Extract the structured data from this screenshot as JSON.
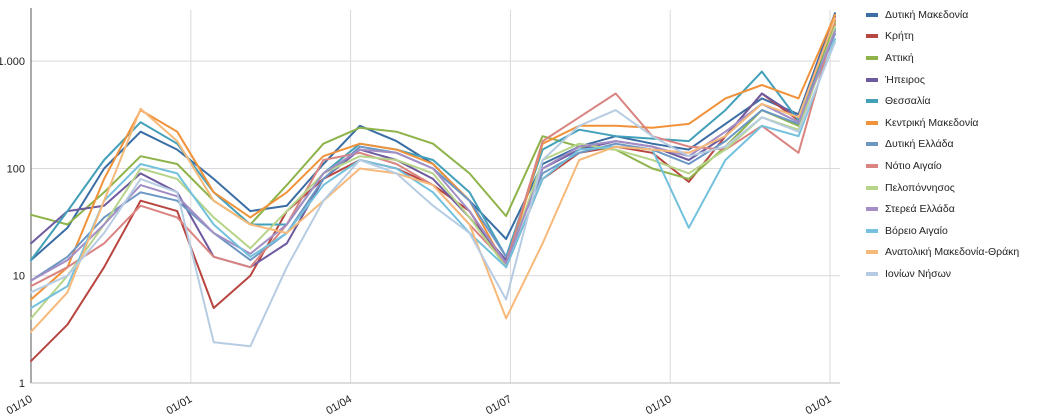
{
  "chart_data": {
    "type": "line",
    "title": "",
    "xlabel": "",
    "ylabel": "",
    "y_scale": "log",
    "ylim": [
      1,
      3000
    ],
    "grid": true,
    "legend_position": "right",
    "y_ticks": [
      {
        "value": 1,
        "label": "1"
      },
      {
        "value": 10,
        "label": "10"
      },
      {
        "value": 100,
        "label": "100"
      },
      {
        "value": 1000,
        "label": "1.000"
      }
    ],
    "x_ticks": [
      "01/10",
      "01/01",
      "01/04",
      "01/07",
      "01/10",
      "01/01"
    ],
    "series": [
      {
        "name": "Δυτική Μακεδονία",
        "color": "#3a6ea5",
        "values": [
          14,
          28,
          100,
          220,
          150,
          80,
          40,
          45,
          110,
          250,
          180,
          110,
          50,
          22,
          110,
          160,
          200,
          170,
          150,
          260,
          450,
          320,
          2800
        ]
      },
      {
        "name": "Κρήτη",
        "color": "#b8453f",
        "values": [
          1.6,
          3.5,
          12,
          50,
          40,
          5,
          10,
          40,
          80,
          120,
          100,
          70,
          40,
          12,
          80,
          140,
          160,
          140,
          75,
          200,
          500,
          280,
          2400
        ]
      },
      {
        "name": "Αττική",
        "color": "#8db34a",
        "values": [
          37,
          30,
          60,
          130,
          110,
          50,
          30,
          70,
          170,
          240,
          220,
          170,
          90,
          36,
          200,
          160,
          150,
          100,
          80,
          160,
          350,
          250,
          2300
        ]
      },
      {
        "name": "Ήπειρος",
        "color": "#6e5a9e",
        "values": [
          20,
          40,
          45,
          90,
          60,
          15,
          12,
          20,
          80,
          150,
          120,
          80,
          35,
          14,
          100,
          150,
          180,
          160,
          120,
          200,
          500,
          300,
          2600
        ]
      },
      {
        "name": "Θεσσαλία",
        "color": "#43a0b9",
        "values": [
          14,
          40,
          120,
          270,
          170,
          60,
          30,
          30,
          90,
          170,
          150,
          120,
          60,
          15,
          150,
          230,
          200,
          190,
          180,
          350,
          800,
          280,
          2000
        ]
      },
      {
        "name": "Κεντρική Μακεδονία",
        "color": "#f0923a",
        "values": [
          6,
          12,
          80,
          350,
          220,
          60,
          35,
          60,
          130,
          170,
          150,
          110,
          50,
          12,
          170,
          250,
          250,
          240,
          260,
          450,
          600,
          450,
          2700
        ]
      },
      {
        "name": "Δυτική Ελλάδα",
        "color": "#6c97c4",
        "values": [
          9,
          15,
          35,
          60,
          50,
          25,
          14,
          25,
          80,
          160,
          140,
          100,
          50,
          15,
          90,
          140,
          170,
          150,
          110,
          180,
          350,
          260,
          1800
        ]
      },
      {
        "name": "Νότιο Αιγαίο",
        "color": "#d98480",
        "values": [
          8,
          12,
          20,
          45,
          35,
          15,
          12,
          30,
          120,
          140,
          110,
          70,
          30,
          13,
          180,
          300,
          500,
          200,
          160,
          150,
          250,
          140,
          2200
        ]
      },
      {
        "name": "Πελοπόννησος",
        "color": "#b7d48b",
        "values": [
          4,
          10,
          30,
          100,
          80,
          35,
          18,
          40,
          90,
          130,
          120,
          90,
          35,
          12,
          120,
          170,
          150,
          120,
          90,
          150,
          300,
          230,
          2100
        ]
      },
      {
        "name": "Στερεά Ελλάδα",
        "color": "#a28ec4",
        "values": [
          9,
          14,
          30,
          70,
          55,
          25,
          16,
          30,
          90,
          150,
          140,
          100,
          40,
          13,
          100,
          160,
          180,
          160,
          130,
          220,
          400,
          270,
          1900
        ]
      },
      {
        "name": "Βόρειο Αιγαίο",
        "color": "#73c1dc",
        "values": [
          5,
          8,
          50,
          110,
          90,
          30,
          15,
          25,
          70,
          120,
          100,
          60,
          25,
          12,
          80,
          150,
          160,
          150,
          28,
          120,
          250,
          200,
          1600
        ]
      },
      {
        "name": "Ανατολική Μακεδονία-Θράκη",
        "color": "#f7b97a",
        "values": [
          3,
          7,
          50,
          360,
          180,
          50,
          30,
          25,
          50,
          100,
          90,
          70,
          30,
          4,
          20,
          120,
          160,
          150,
          140,
          200,
          400,
          300,
          2500
        ]
      },
      {
        "name": "Ιονίων Νήσων",
        "color": "#b6cce2",
        "values": [
          7,
          10,
          25,
          80,
          60,
          2.4,
          2.2,
          12,
          50,
          120,
          90,
          45,
          25,
          6,
          120,
          250,
          350,
          200,
          130,
          160,
          300,
          220,
          1500
        ]
      }
    ]
  }
}
